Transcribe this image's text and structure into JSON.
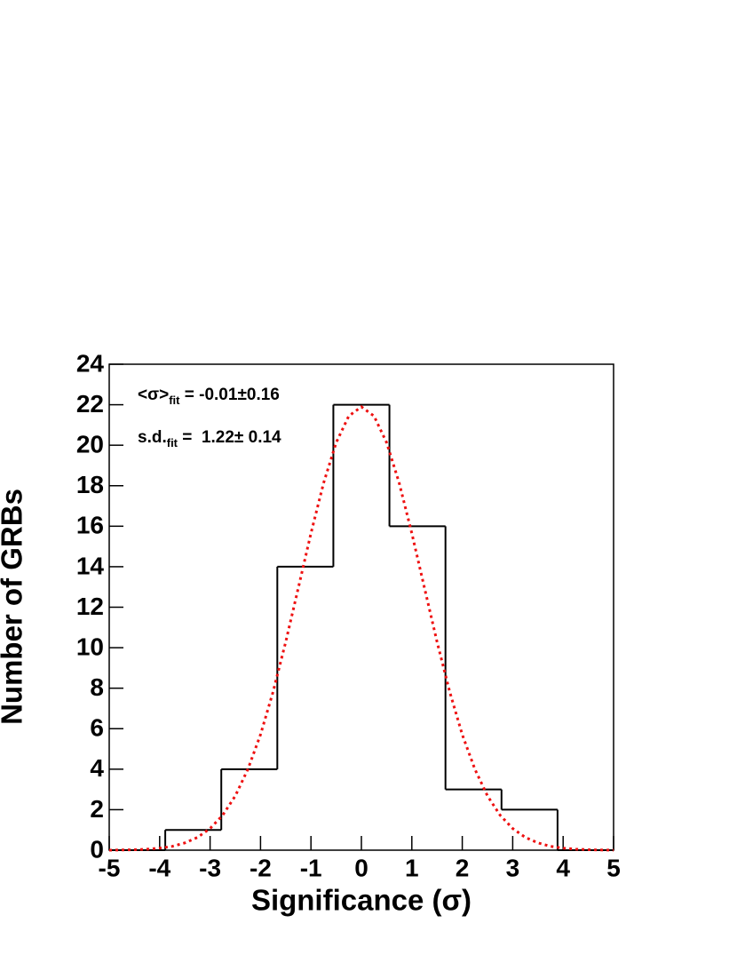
{
  "chart_data": {
    "type": "histogram",
    "x_label": "Significance (σ)",
    "y_label": "Number of GRBs",
    "bins": [
      -5,
      -3.889,
      -2.778,
      -1.667,
      -0.556,
      0.556,
      1.667,
      2.778,
      3.889,
      5
    ],
    "values": [
      0,
      1,
      4,
      14,
      22,
      16,
      3,
      2,
      0
    ],
    "color": "#000000",
    "xlim": [
      -5,
      5
    ],
    "xticks": [
      -5,
      -4,
      -3,
      -2,
      -1,
      0,
      1,
      2,
      3,
      4,
      5
    ],
    "ylim": [
      0,
      24
    ],
    "yticks": [
      0,
      2,
      4,
      6,
      8,
      10,
      12,
      14,
      16,
      18,
      20,
      22,
      24
    ],
    "fit": {
      "color": "#ee1111",
      "x": [
        -5,
        -4.75,
        -4.5,
        -4.25,
        -4,
        -3.75,
        -3.5,
        -3.25,
        -3,
        -2.75,
        -2.5,
        -2.25,
        -2,
        -1.75,
        -1.5,
        -1.25,
        -1,
        -0.75,
        -0.5,
        -0.25,
        0,
        0.25,
        0.5,
        0.75,
        1,
        1.25,
        1.5,
        1.75,
        2,
        2.25,
        2.5,
        2.75,
        3,
        3.25,
        3.5,
        3.75,
        4,
        4.25,
        4.5,
        4.75,
        5
      ],
      "values": [
        0,
        0.01,
        0.02,
        0.05,
        0.1,
        0.19,
        0.36,
        0.63,
        1.07,
        1.73,
        2.68,
        4,
        5.71,
        7.83,
        10.29,
        12.96,
        15.65,
        18.13,
        20.13,
        21.44,
        21.9,
        21.44,
        20.13,
        18.13,
        15.65,
        12.96,
        10.29,
        7.83,
        5.71,
        4,
        2.68,
        1.73,
        1.07,
        0.63,
        0.36,
        0.19,
        0.1,
        0.05,
        0.02,
        0.01,
        0
      ]
    },
    "annotations": [
      {
        "label": "<σ>",
        "subscript": "fit",
        "text": " = -0.01±0.16"
      },
      {
        "label": "s.d.",
        "subscript": "fit",
        "text": " =  1.22± 0.14"
      }
    ]
  }
}
